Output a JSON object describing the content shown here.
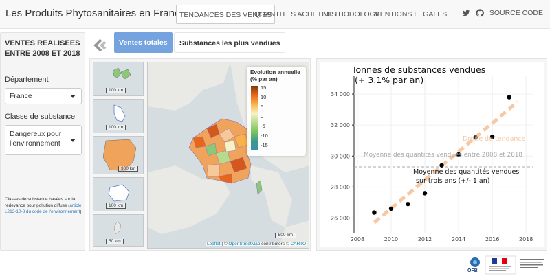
{
  "nav": {
    "brand": "Les Produits Phytosanitaires en France",
    "items": [
      "Tendances des ventes",
      "Quantites achetees",
      "Methodologie",
      "Mentions legales"
    ],
    "source_code": "Source Code"
  },
  "sidebar": {
    "title_line1": "VENTES REALISEES",
    "title_line2": "ENTRE 2008 ET 2018",
    "departement_label": "Département",
    "departement_value": "France",
    "classe_label": "Classe de substance",
    "classe_value_line1": "Dangereux pour",
    "classe_value_line2": "l'environnement",
    "note_text": "Classes de substance basées sur la redevance pour pollution diffuse (",
    "note_link": "article L213-10-8 du code de l'environnement",
    "note_end": ")"
  },
  "tabs": {
    "active": "Ventes totales",
    "other": "Substances les plus vendues"
  },
  "map": {
    "legend_title": "Evolution annuelle (% par an)",
    "legend_ticks": [
      "15",
      "10",
      "5",
      "0",
      "-5",
      "-10",
      "-15"
    ],
    "insets": [
      {
        "name": "guadeloupe",
        "scale": "100 km"
      },
      {
        "name": "martinique",
        "scale": "100 km"
      },
      {
        "name": "guyane",
        "scale": "300 km"
      },
      {
        "name": "reunion",
        "scale": "100 km"
      },
      {
        "name": "mayotte",
        "scale": "50 km"
      }
    ],
    "main_scale": "500 km",
    "attribution_leaflet": "Leaflet",
    "attribution_sep": " | © ",
    "attribution_osm": "OpenStreetMap",
    "attribution_mid": " contributors © ",
    "attribution_carto": "CARTO",
    "colors": {
      "orange": "#f0a35b",
      "green": "#8bc87a",
      "red": "#d4581e",
      "sea": "#d6dde1",
      "land": "#e8e8e4"
    }
  },
  "chart_data": {
    "type": "scatter",
    "title_line1": "Tonnes de substances vendues",
    "title_line2": "(+ 3.1% par an)",
    "x_ticks": [
      "2008",
      "2010",
      "2012",
      "2014",
      "2016",
      "2018"
    ],
    "y_ticks": [
      "26 000",
      "28 000",
      "30 000",
      "32 000",
      "34 000"
    ],
    "xlim": [
      2007.8,
      2018.4
    ],
    "ylim": [
      25000,
      35200
    ],
    "points": [
      {
        "x": 2009,
        "y": 26350
      },
      {
        "x": 2010,
        "y": 26600
      },
      {
        "x": 2011,
        "y": 26900
      },
      {
        "x": 2012,
        "y": 27600
      },
      {
        "x": 2013,
        "y": 29400
      },
      {
        "x": 2014,
        "y": 30100
      },
      {
        "x": 2015,
        "y": 31200
      },
      {
        "x": 2016,
        "y": 31250
      },
      {
        "x": 2017,
        "y": 33800
      }
    ],
    "trend_line": {
      "x": [
        2009,
        2017.5
      ],
      "y": [
        25700,
        33500
      ],
      "label": "Droite de tendance",
      "color": "#f6c8a4"
    },
    "mean_line": {
      "y": 29300,
      "label": "Moyenne des quantités vendues entre 2008 et 2018",
      "color": "#aaaaaa"
    },
    "annotation_line1": "Moyenne des quantités vendues",
    "annotation_line2": "sur trois ans (+/- 1 an)"
  }
}
